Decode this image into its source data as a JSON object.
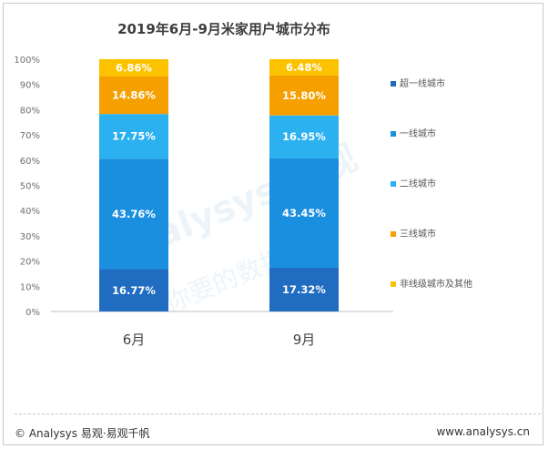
{
  "chart_data": {
    "type": "bar",
    "stacked": true,
    "title": "2019年6月-9月米家用户城市分布",
    "categories": [
      "6月",
      "9月"
    ],
    "series": [
      {
        "name": "超一线城市",
        "color": "#1f6cc1",
        "values": [
          16.77,
          17.32
        ],
        "labels": [
          "16.77%",
          "17.32%"
        ]
      },
      {
        "name": "一线城市",
        "color": "#1a8fe0",
        "values": [
          43.76,
          43.45
        ],
        "labels": [
          "43.76%",
          "43.45%"
        ]
      },
      {
        "name": "二线城市",
        "color": "#2bb0f0",
        "values": [
          17.75,
          16.95
        ],
        "labels": [
          "17.75%",
          "16.95%"
        ]
      },
      {
        "name": "三线城市",
        "color": "#f5a000",
        "values": [
          14.86,
          15.8
        ],
        "labels": [
          "14.86%",
          "15.80%"
        ]
      },
      {
        "name": "非线级城市及其他",
        "color": "#fcc200",
        "values": [
          6.86,
          6.48
        ],
        "labels": [
          "6.86%",
          "6.48%"
        ]
      }
    ],
    "yticks": [
      "0%",
      "10%",
      "20%",
      "30%",
      "40%",
      "50%",
      "60%",
      "70%",
      "80%",
      "90%",
      "100%"
    ],
    "ylim": [
      0,
      100
    ],
    "legend_position": "right",
    "grid": false
  },
  "footer": {
    "left": "© Analysys 易观·易观千帆",
    "right": "www.analysys.cn"
  },
  "watermark": {
    "brand": "Analysys 易观",
    "slogan": "你要的数据分析"
  }
}
